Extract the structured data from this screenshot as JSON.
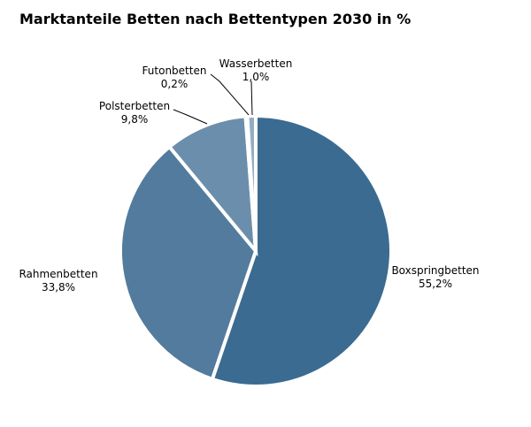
{
  "chart_data": {
    "type": "pie",
    "title": "Marktanteile Betten nach Bettentypen 2030 in %",
    "start_angle_deg": 0,
    "direction": "clockwise",
    "slices": [
      {
        "name": "Boxspringbetten",
        "value": 55.2,
        "value_label": "55,2%",
        "color": "#3b6b91"
      },
      {
        "name": "Rahmenbetten",
        "value": 33.8,
        "value_label": "33,8%",
        "color": "#537b9d"
      },
      {
        "name": "Polsterbetten",
        "value": 9.8,
        "value_label": "9,8%",
        "color": "#6b8eac"
      },
      {
        "name": "Futonbetten",
        "value": 0.2,
        "value_label": "0,2%",
        "color": "#7f9db8"
      },
      {
        "name": "Wasserbetten",
        "value": 1.0,
        "value_label": "1,0%",
        "color": "#93adc4"
      }
    ]
  }
}
